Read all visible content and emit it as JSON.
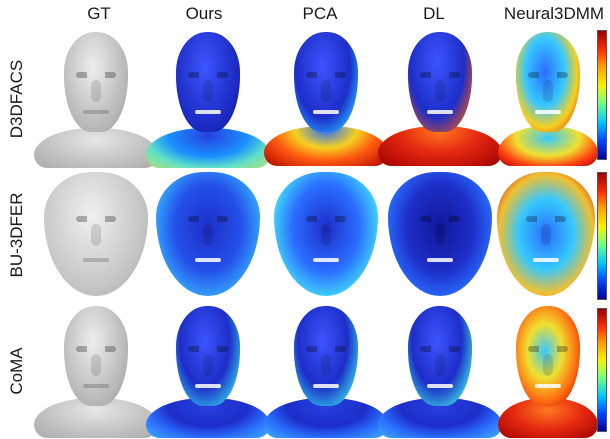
{
  "columns": [
    "GT",
    "Ours",
    "PCA",
    "DL",
    "Neural3DMM"
  ],
  "rows": [
    {
      "label": "D3DFACS",
      "style": "head"
    },
    {
      "label": "BU-3DFER",
      "style": "mask"
    },
    {
      "label": "CoMA",
      "style": "head"
    }
  ],
  "colors": {
    "gt_gray": "#c8c8c8",
    "error_low": "#1d37d6",
    "error_mid": "#38c8ff",
    "error_high": "#e53a12",
    "error_max": "#9a0000"
  },
  "colorbar_scale": "low-blue to high-red"
}
